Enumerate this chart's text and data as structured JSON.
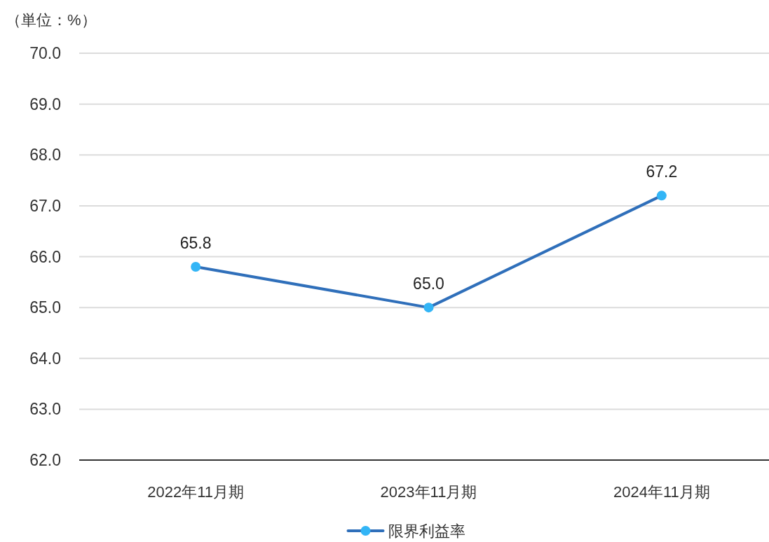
{
  "chart_data": {
    "type": "line",
    "ylabel": "（単位：%）",
    "categories": [
      "2022年11月期",
      "2023年11月期",
      "2024年11月期"
    ],
    "series": [
      {
        "name": "限界利益率",
        "color": "#2f6fba",
        "colors": [
          "#33b5f6",
          "#33b5f6",
          "#33b5f6"
        ],
        "values": [
          65.8,
          65.0,
          67.2
        ],
        "value_labels": [
          "65.8",
          "65.0",
          "67.2"
        ]
      }
    ],
    "ylim": [
      62,
      70
    ],
    "yticks": [
      {
        "value": 62,
        "label": "62.0"
      },
      {
        "value": 63,
        "label": "63.0"
      },
      {
        "value": 64,
        "label": "64.0"
      },
      {
        "value": 65,
        "label": "65.0"
      },
      {
        "value": 66,
        "label": "66.0"
      },
      {
        "value": 67,
        "label": "67.0"
      },
      {
        "value": 68,
        "label": "68.0"
      },
      {
        "value": 69,
        "label": "69.0"
      },
      {
        "value": 70,
        "label": "70.0"
      }
    ],
    "grid": "y",
    "legend": "bottom",
    "marker": "circle",
    "line_style": "solid"
  }
}
